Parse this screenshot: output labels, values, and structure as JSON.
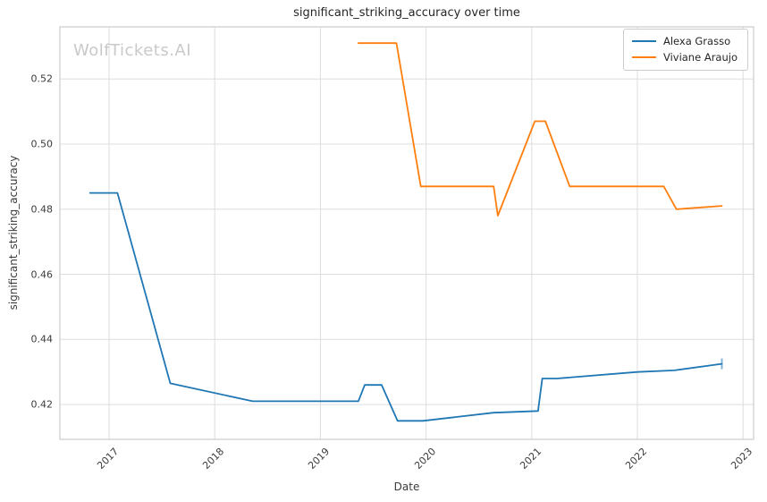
{
  "title": "significant_striking_accuracy over time",
  "watermark": "WolfTickets.AI",
  "axes": {
    "xlabel": "Date",
    "ylabel": "significant_striking_accuracy"
  },
  "legend": {
    "items": [
      {
        "label": "Alexa Grasso",
        "color": "#1f77b4"
      },
      {
        "label": "Viviane Araujo",
        "color": "#ff7f0e"
      }
    ]
  },
  "chart_data": {
    "type": "line",
    "title": "significant_striking_accuracy over time",
    "xlabel": "Date",
    "ylabel": "significant_striking_accuracy",
    "xlim": [
      2016.535,
      2023.1
    ],
    "ylim": [
      0.4093,
      0.536
    ],
    "x_ticks": [
      2017,
      2018,
      2019,
      2020,
      2021,
      2022,
      2023
    ],
    "y_ticks": [
      0.42,
      0.44,
      0.46,
      0.48,
      0.5,
      0.52
    ],
    "grid": true,
    "grid_color": "#dddddd",
    "spine_color": "#cccccc",
    "legend_position": "upper right",
    "series": [
      {
        "name": "Alexa Grasso",
        "color": "#1f77b4",
        "end_tick_marker": true,
        "points": [
          [
            2016.82,
            0.485
          ],
          [
            2017.08,
            0.485
          ],
          [
            2017.58,
            0.4265
          ],
          [
            2018.36,
            0.421
          ],
          [
            2019.36,
            0.421
          ],
          [
            2019.42,
            0.426
          ],
          [
            2019.58,
            0.426
          ],
          [
            2019.73,
            0.415
          ],
          [
            2019.97,
            0.415
          ],
          [
            2020.64,
            0.4175
          ],
          [
            2021.06,
            0.418
          ],
          [
            2021.1,
            0.428
          ],
          [
            2021.24,
            0.428
          ],
          [
            2022.0,
            0.43
          ],
          [
            2022.35,
            0.4305
          ],
          [
            2022.8,
            0.4325
          ]
        ]
      },
      {
        "name": "Viviane Araujo",
        "color": "#ff7f0e",
        "end_tick_marker": false,
        "points": [
          [
            2019.36,
            0.531
          ],
          [
            2019.72,
            0.531
          ],
          [
            2019.95,
            0.487
          ],
          [
            2020.64,
            0.487
          ],
          [
            2020.68,
            0.478
          ],
          [
            2021.03,
            0.507
          ],
          [
            2021.13,
            0.507
          ],
          [
            2021.36,
            0.487
          ],
          [
            2022.25,
            0.487
          ],
          [
            2022.37,
            0.48
          ],
          [
            2022.8,
            0.481
          ]
        ]
      }
    ]
  }
}
